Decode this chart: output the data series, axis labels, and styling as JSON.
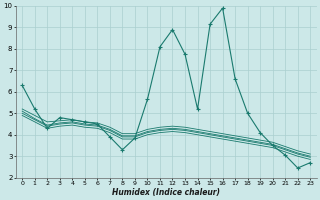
{
  "xlabel": "Humidex (Indice chaleur)",
  "bg_color": "#cce8e8",
  "line_color": "#1a7a6e",
  "grid_color": "#aacfcf",
  "xlim": [
    -0.5,
    23.5
  ],
  "ylim": [
    2,
    10
  ],
  "xticks": [
    0,
    1,
    2,
    3,
    4,
    5,
    6,
    7,
    8,
    9,
    10,
    11,
    12,
    13,
    14,
    15,
    16,
    17,
    18,
    19,
    20,
    21,
    22,
    23
  ],
  "yticks": [
    2,
    3,
    4,
    5,
    6,
    7,
    8,
    9,
    10
  ],
  "main_series": [
    6.3,
    5.2,
    4.3,
    4.8,
    4.7,
    4.6,
    4.5,
    3.9,
    3.3,
    3.85,
    5.65,
    8.1,
    8.9,
    7.75,
    5.2,
    9.15,
    9.9,
    6.6,
    5.0,
    4.1,
    3.5,
    3.05,
    2.45,
    2.7
  ],
  "trend_lines": [
    [
      5.2,
      4.9,
      4.6,
      4.65,
      4.7,
      4.6,
      4.55,
      4.35,
      4.05,
      4.05,
      4.25,
      4.35,
      4.4,
      4.35,
      4.25,
      4.15,
      4.05,
      3.95,
      3.85,
      3.75,
      3.65,
      3.45,
      3.25,
      3.1
    ],
    [
      5.1,
      4.75,
      4.45,
      4.55,
      4.6,
      4.5,
      4.45,
      4.25,
      3.95,
      3.95,
      4.15,
      4.25,
      4.3,
      4.25,
      4.15,
      4.05,
      3.95,
      3.85,
      3.75,
      3.65,
      3.55,
      3.35,
      3.15,
      3.0
    ],
    [
      5.0,
      4.7,
      4.4,
      4.5,
      4.55,
      4.45,
      4.4,
      4.2,
      3.9,
      3.9,
      4.1,
      4.2,
      4.25,
      4.2,
      4.1,
      4.0,
      3.9,
      3.8,
      3.7,
      3.6,
      3.5,
      3.3,
      3.1,
      2.95
    ],
    [
      4.9,
      4.6,
      4.3,
      4.4,
      4.45,
      4.35,
      4.3,
      4.1,
      3.8,
      3.8,
      4.0,
      4.1,
      4.15,
      4.1,
      4.0,
      3.9,
      3.8,
      3.7,
      3.6,
      3.5,
      3.4,
      3.2,
      3.0,
      2.85
    ]
  ]
}
